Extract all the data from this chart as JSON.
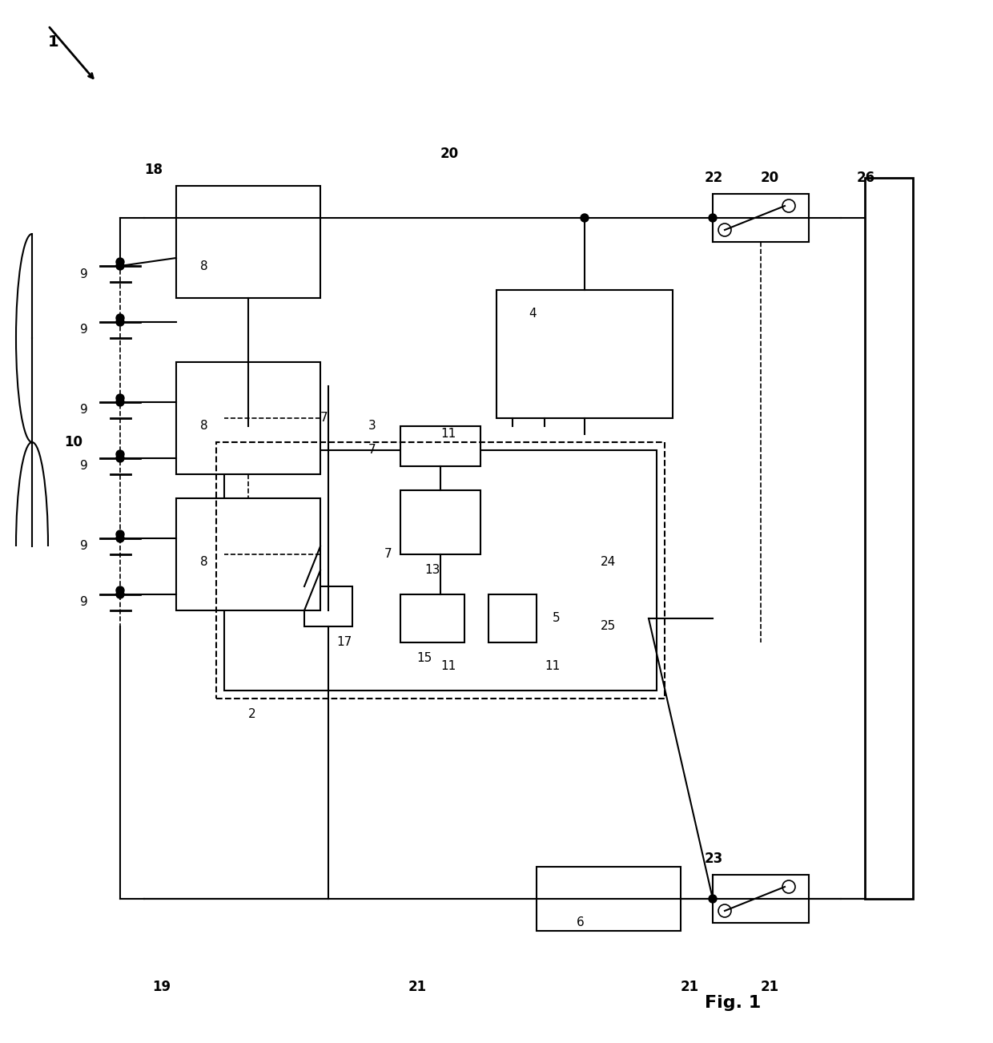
{
  "title": "Fig. 1",
  "bg_color": "#ffffff",
  "line_color": "#000000",
  "fig_width": 12.4,
  "fig_height": 13.02,
  "dpi": 100
}
